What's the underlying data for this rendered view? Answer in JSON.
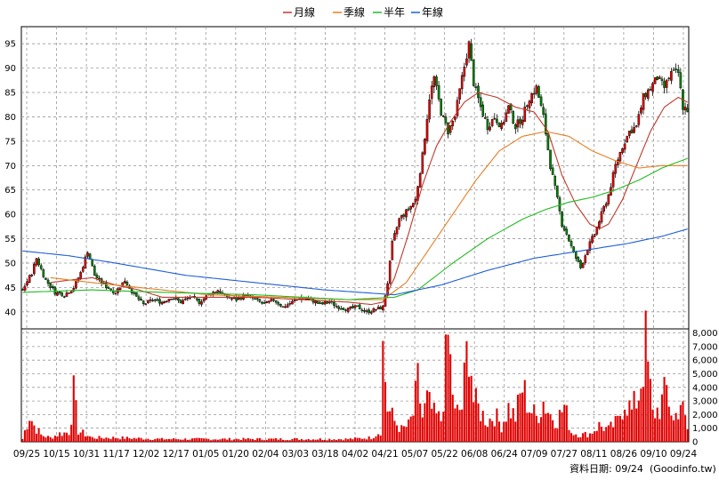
{
  "legend": [
    {
      "label": "月線",
      "color": "#c0392b"
    },
    {
      "label": "季線",
      "color": "#e67e22"
    },
    {
      "label": "半年",
      "color": "#22bb22"
    },
    {
      "label": "年線",
      "color": "#1f5fd6"
    }
  ],
  "footer": {
    "date_label": "資料日期: 09/24",
    "source": "(Goodinfo.tw)"
  },
  "colors": {
    "up": "#e00000",
    "down": "#008000",
    "volume": "#e00000",
    "grid": "#999999"
  },
  "chart_data": {
    "type": "candlestick",
    "price_axis": {
      "ticks": [
        40,
        45,
        50,
        55,
        60,
        65,
        70,
        75,
        80,
        85,
        90,
        95
      ],
      "range": [
        36.5,
        98.5
      ]
    },
    "volume_axis": {
      "ticks": [
        0,
        1000,
        2000,
        3000,
        4000,
        5000,
        6000,
        7000,
        8000
      ],
      "tick_labels": [
        "0",
        "1,000",
        "2,000",
        "3,000",
        "4,000",
        "5,000",
        "6,000",
        "7,000",
        "8,000"
      ],
      "range": [
        0,
        8300
      ]
    },
    "x_tick_labels": [
      "09/25",
      "10/15",
      "10/31",
      "11/17",
      "12/02",
      "12/17",
      "01/05",
      "01/20",
      "02/04",
      "03/03",
      "03/18",
      "04/02",
      "04/21",
      "05/07",
      "05/22",
      "06/08",
      "06/24",
      "07/09",
      "07/27",
      "08/11",
      "08/26",
      "09/10",
      "09/24"
    ],
    "price_anchors": [
      [
        0,
        44.5
      ],
      [
        4,
        48
      ],
      [
        6,
        51
      ],
      [
        10,
        46.5
      ],
      [
        14,
        44
      ],
      [
        18,
        43.5
      ],
      [
        22,
        45
      ],
      [
        25,
        48
      ],
      [
        28,
        52.5
      ],
      [
        31,
        47.5
      ],
      [
        35,
        45.5
      ],
      [
        40,
        44
      ],
      [
        44,
        46.5
      ],
      [
        48,
        43.5
      ],
      [
        52,
        41.5
      ],
      [
        56,
        42.5
      ],
      [
        60,
        42
      ],
      [
        64,
        43
      ],
      [
        68,
        42
      ],
      [
        72,
        43
      ],
      [
        76,
        42
      ],
      [
        80,
        43.5
      ],
      [
        84,
        44.5
      ],
      [
        88,
        43
      ],
      [
        92,
        42.5
      ],
      [
        96,
        43.5
      ],
      [
        100,
        42.5
      ],
      [
        104,
        41.5
      ],
      [
        108,
        42.5
      ],
      [
        112,
        41
      ],
      [
        116,
        42
      ],
      [
        120,
        43
      ],
      [
        124,
        42.5
      ],
      [
        128,
        41.5
      ],
      [
        132,
        42
      ],
      [
        136,
        41
      ],
      [
        140,
        40.5
      ],
      [
        144,
        41
      ],
      [
        148,
        40
      ],
      [
        152,
        40.5
      ],
      [
        155,
        41
      ],
      [
        157,
        46
      ],
      [
        159,
        54
      ],
      [
        162,
        59
      ],
      [
        166,
        61
      ],
      [
        169,
        63
      ],
      [
        172,
        72
      ],
      [
        175,
        84
      ],
      [
        177,
        88
      ],
      [
        180,
        81
      ],
      [
        183,
        77
      ],
      [
        186,
        80
      ],
      [
        189,
        88
      ],
      [
        192,
        95
      ],
      [
        194,
        87
      ],
      [
        197,
        82
      ],
      [
        200,
        78
      ],
      [
        203,
        80
      ],
      [
        206,
        78
      ],
      [
        209,
        82
      ],
      [
        212,
        78
      ],
      [
        215,
        80
      ],
      [
        218,
        84
      ],
      [
        221,
        86
      ],
      [
        224,
        80
      ],
      [
        227,
        70
      ],
      [
        230,
        63
      ],
      [
        232,
        58
      ],
      [
        234,
        56
      ],
      [
        237,
        52
      ],
      [
        240,
        49
      ],
      [
        243,
        53
      ],
      [
        246,
        56
      ],
      [
        249,
        60
      ],
      [
        252,
        64
      ],
      [
        255,
        70
      ],
      [
        258,
        74
      ],
      [
        261,
        77
      ],
      [
        264,
        78
      ],
      [
        267,
        84
      ],
      [
        270,
        86
      ],
      [
        273,
        88
      ],
      [
        276,
        86
      ],
      [
        279,
        89
      ],
      [
        282,
        89
      ],
      [
        284,
        82
      ],
      [
        286,
        81.5
      ]
    ],
    "volume_anchors": [
      [
        0,
        200
      ],
      [
        3,
        2000
      ],
      [
        5,
        1200
      ],
      [
        8,
        500
      ],
      [
        12,
        300
      ],
      [
        16,
        600
      ],
      [
        20,
        700
      ],
      [
        22,
        3500
      ],
      [
        24,
        800
      ],
      [
        30,
        300
      ],
      [
        40,
        300
      ],
      [
        60,
        200
      ],
      [
        80,
        200
      ],
      [
        100,
        200
      ],
      [
        120,
        200
      ],
      [
        140,
        200
      ],
      [
        150,
        300
      ],
      [
        154,
        800
      ],
      [
        155,
        6800
      ],
      [
        157,
        2500
      ],
      [
        160,
        1500
      ],
      [
        163,
        900
      ],
      [
        166,
        1200
      ],
      [
        168,
        2000
      ],
      [
        170,
        4300
      ],
      [
        172,
        1800
      ],
      [
        174,
        3000
      ],
      [
        177,
        2000
      ],
      [
        180,
        1600
      ],
      [
        183,
        7500
      ],
      [
        186,
        2000
      ],
      [
        189,
        2500
      ],
      [
        192,
        8000
      ],
      [
        194,
        3000
      ],
      [
        197,
        2200
      ],
      [
        200,
        1500
      ],
      [
        203,
        2000
      ],
      [
        206,
        1200
      ],
      [
        209,
        2500
      ],
      [
        212,
        1800
      ],
      [
        215,
        4000
      ],
      [
        218,
        2500
      ],
      [
        221,
        1800
      ],
      [
        224,
        3000
      ],
      [
        227,
        2000
      ],
      [
        230,
        1600
      ],
      [
        233,
        2600
      ],
      [
        236,
        700
      ],
      [
        240,
        500
      ],
      [
        244,
        600
      ],
      [
        248,
        1200
      ],
      [
        252,
        900
      ],
      [
        256,
        1500
      ],
      [
        259,
        3200
      ],
      [
        262,
        2200
      ],
      [
        265,
        3500
      ],
      [
        268,
        7000
      ],
      [
        271,
        2000
      ],
      [
        274,
        2500
      ],
      [
        277,
        3800
      ],
      [
        280,
        1500
      ],
      [
        283,
        3000
      ],
      [
        286,
        900
      ]
    ],
    "ma_month_anchors": [
      [
        12,
        46
      ],
      [
        20,
        46.5
      ],
      [
        30,
        47
      ],
      [
        40,
        45.5
      ],
      [
        50,
        44.5
      ],
      [
        60,
        43
      ],
      [
        80,
        43
      ],
      [
        100,
        43
      ],
      [
        120,
        42.5
      ],
      [
        140,
        42
      ],
      [
        150,
        41.5
      ],
      [
        155,
        42
      ],
      [
        160,
        47
      ],
      [
        166,
        56
      ],
      [
        172,
        66
      ],
      [
        178,
        74
      ],
      [
        184,
        79
      ],
      [
        190,
        83
      ],
      [
        196,
        85
      ],
      [
        204,
        84
      ],
      [
        212,
        82
      ],
      [
        220,
        81
      ],
      [
        226,
        77
      ],
      [
        232,
        68
      ],
      [
        238,
        62
      ],
      [
        244,
        58
      ],
      [
        248,
        57
      ],
      [
        252,
        58
      ],
      [
        258,
        63
      ],
      [
        264,
        70
      ],
      [
        270,
        77
      ],
      [
        276,
        82
      ],
      [
        282,
        84
      ],
      [
        286,
        83
      ]
    ],
    "ma_quarter_anchors": [
      [
        12,
        47
      ],
      [
        30,
        46
      ],
      [
        50,
        45
      ],
      [
        80,
        43.5
      ],
      [
        110,
        43
      ],
      [
        140,
        42.5
      ],
      [
        155,
        42.5
      ],
      [
        165,
        46
      ],
      [
        175,
        53
      ],
      [
        185,
        60
      ],
      [
        195,
        67
      ],
      [
        205,
        73
      ],
      [
        215,
        76
      ],
      [
        225,
        77
      ],
      [
        235,
        76
      ],
      [
        245,
        73
      ],
      [
        255,
        71
      ],
      [
        265,
        69.5
      ],
      [
        275,
        70
      ],
      [
        286,
        70
      ]
    ],
    "ma_half_anchors": [
      [
        0,
        44
      ],
      [
        30,
        44.5
      ],
      [
        60,
        44
      ],
      [
        100,
        43.5
      ],
      [
        140,
        42.5
      ],
      [
        160,
        43
      ],
      [
        170,
        44.5
      ],
      [
        185,
        50
      ],
      [
        200,
        55
      ],
      [
        215,
        59
      ],
      [
        225,
        61
      ],
      [
        235,
        62.5
      ],
      [
        245,
        63.5
      ],
      [
        255,
        65
      ],
      [
        265,
        67
      ],
      [
        275,
        69.5
      ],
      [
        286,
        71.5
      ]
    ],
    "ma_year_anchors": [
      [
        0,
        52.5
      ],
      [
        20,
        51.5
      ],
      [
        40,
        50
      ],
      [
        70,
        47.5
      ],
      [
        100,
        46
      ],
      [
        130,
        44.5
      ],
      [
        160,
        43.5
      ],
      [
        180,
        45.5
      ],
      [
        200,
        48.5
      ],
      [
        220,
        51
      ],
      [
        240,
        52.5
      ],
      [
        260,
        54
      ],
      [
        275,
        55.5
      ],
      [
        286,
        57
      ]
    ],
    "series": [
      {
        "name": "月線"
      },
      {
        "name": "季線"
      },
      {
        "name": "半年"
      },
      {
        "name": "年線"
      }
    ]
  }
}
